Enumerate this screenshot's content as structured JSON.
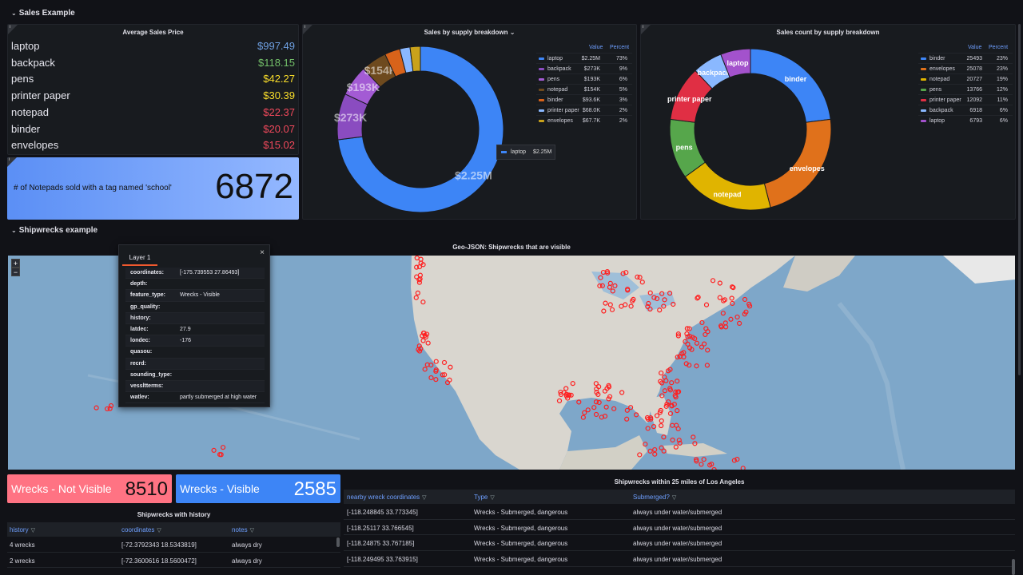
{
  "rows": {
    "sales_title": "Sales Example",
    "ship_title": "Shipwrecks example"
  },
  "avg_price": {
    "title": "Average Sales Price",
    "items": [
      {
        "name": "laptop",
        "value": "$997.49",
        "color": "#6e9fe0"
      },
      {
        "name": "backpack",
        "value": "$118.15",
        "color": "#73bf69"
      },
      {
        "name": "pens",
        "value": "$42.27",
        "color": "#fade2a"
      },
      {
        "name": "printer paper",
        "value": "$30.39",
        "color": "#fade2a"
      },
      {
        "name": "notepad",
        "value": "$22.37",
        "color": "#f2495c"
      },
      {
        "name": "binder",
        "value": "$20.07",
        "color": "#f2495c"
      },
      {
        "name": "envelopes",
        "value": "$15.02",
        "color": "#f2495c"
      }
    ]
  },
  "notepad_stat": {
    "label": "# of Notepads sold with a tag named 'school'",
    "value": "6872"
  },
  "supply_breakdown": {
    "title": "Sales by supply breakdown",
    "title_suffix": "⌄",
    "header_value": "Value",
    "header_percent": "Percent",
    "tooltip_label": "laptop",
    "tooltip_value": "$2.25M",
    "slice_labels": [
      "$2.25M",
      "$273K",
      "$193K",
      "$154K"
    ],
    "legend": [
      {
        "name": "laptop",
        "value": "$2.25M",
        "percent": "73%",
        "color": "#3d85f6"
      },
      {
        "name": "backpack",
        "value": "$273K",
        "percent": "9%",
        "color": "#8a4cc0"
      },
      {
        "name": "pens",
        "value": "$193K",
        "percent": "6%",
        "color": "#a35bd4"
      },
      {
        "name": "notepad",
        "value": "$154K",
        "percent": "5%",
        "color": "#6e4a1e"
      },
      {
        "name": "binder",
        "value": "$93.6K",
        "percent": "3%",
        "color": "#d8631a"
      },
      {
        "name": "printer paper",
        "value": "$68.0K",
        "percent": "2%",
        "color": "#8ab8ff"
      },
      {
        "name": "envelopes",
        "value": "$67.7K",
        "percent": "2%",
        "color": "#c9a21b"
      }
    ]
  },
  "count_breakdown": {
    "title": "Sales count by supply breakdown",
    "header_value": "Value",
    "header_percent": "Percent",
    "slice_labels": [
      "binder",
      "envelopes",
      "notepad",
      "pens",
      "printer paper",
      "backpack",
      "laptop"
    ],
    "legend": [
      {
        "name": "binder",
        "value": "25493",
        "percent": "23%",
        "color": "#3d85f6"
      },
      {
        "name": "envelopes",
        "value": "25078",
        "percent": "23%",
        "color": "#e0711b"
      },
      {
        "name": "notepad",
        "value": "20727",
        "percent": "19%",
        "color": "#e0b400"
      },
      {
        "name": "pens",
        "value": "13766",
        "percent": "12%",
        "color": "#56a64b"
      },
      {
        "name": "printer paper",
        "value": "12092",
        "percent": "11%",
        "color": "#e02f44"
      },
      {
        "name": "backpack",
        "value": "6918",
        "percent": "6%",
        "color": "#8ab8ff"
      },
      {
        "name": "laptop",
        "value": "6793",
        "percent": "6%",
        "color": "#a352cc"
      }
    ]
  },
  "map": {
    "title": "Geo-JSON: Shipwrecks that are visible",
    "zoom_in": "+",
    "zoom_out": "−",
    "popup": {
      "tab": "Layer 1",
      "close": "×",
      "fields": [
        {
          "key": "coordinates:",
          "value": "[-175.739553 27.86493]"
        },
        {
          "key": "depth:",
          "value": ""
        },
        {
          "key": "feature_type:",
          "value": "Wrecks - Visible"
        },
        {
          "key": "gp_quality:",
          "value": ""
        },
        {
          "key": "history:",
          "value": ""
        },
        {
          "key": "latdec:",
          "value": "27.9"
        },
        {
          "key": "londec:",
          "value": "-176"
        },
        {
          "key": "quasou:",
          "value": ""
        },
        {
          "key": "recrd:",
          "value": ""
        },
        {
          "key": "sounding_type:",
          "value": ""
        },
        {
          "key": "vessltterms:",
          "value": ""
        },
        {
          "key": "watlev:",
          "value": "partly submerged at high water"
        }
      ]
    }
  },
  "tiles": {
    "not_visible_label": "Wrecks - Not Visible",
    "not_visible_value": "8510",
    "visible_label": "Wrecks - Visible",
    "visible_value": "2585"
  },
  "history_table": {
    "title": "Shipwrecks with history",
    "columns": [
      "history",
      "coordinates",
      "notes"
    ],
    "rows": [
      [
        "4 wrecks",
        "[-72.3792343 18.5343819]",
        "always dry"
      ],
      [
        "2 wrecks",
        "[-72.3600616 18.5600472]",
        "always dry"
      ]
    ]
  },
  "la_table": {
    "title": "Shipwrecks within 25 miles of Los Angeles",
    "columns": [
      "nearby wreck coordinates",
      "Type",
      "Submerged?"
    ],
    "rows": [
      [
        "[-118.248845 33.773345]",
        "Wrecks - Submerged, dangerous",
        "always under water/submerged"
      ],
      [
        "[-118.25117 33.766545]",
        "Wrecks - Submerged, dangerous",
        "always under water/submerged"
      ],
      [
        "[-118.24875 33.767185]",
        "Wrecks - Submerged, dangerous",
        "always under water/submerged"
      ],
      [
        "[-118.249495 33.763915]",
        "Wrecks - Submerged, dangerous",
        "always under water/submerged"
      ]
    ]
  }
}
